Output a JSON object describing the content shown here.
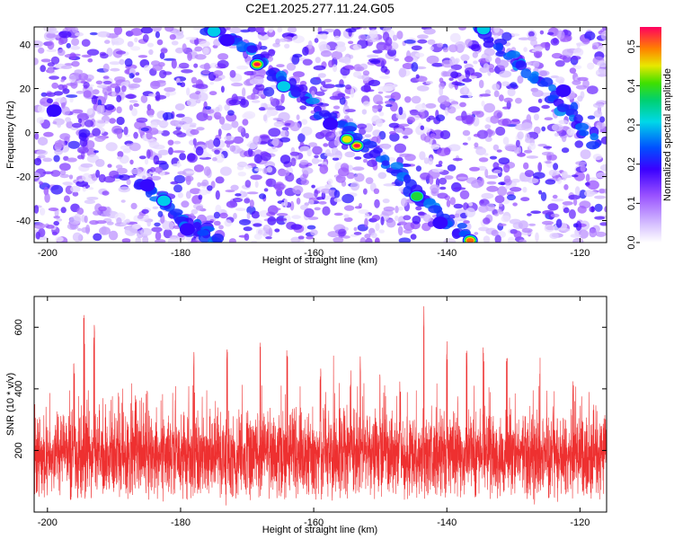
{
  "chart_data": [
    {
      "type": "heatmap",
      "title": "C2E1.2025.277.11.24.G05",
      "xlabel": "Height of straight line (km)",
      "ylabel": "Frequency (Hz)",
      "xlim": [
        -202,
        -116
      ],
      "ylim": [
        -50,
        48
      ],
      "xticks": [
        -200,
        -180,
        -160,
        -140,
        -120
      ],
      "yticks": [
        -40,
        -20,
        0,
        20,
        40
      ],
      "xtick_labels": [
        "-200",
        "-180",
        "-160",
        "-140",
        "-120"
      ],
      "ytick_labels": [
        "-40",
        "-20",
        "0",
        "20",
        "40"
      ],
      "colorbar": {
        "label": "Normalized spectral amplitude",
        "range": [
          0,
          0.55
        ],
        "ticks": [
          0,
          0.1,
          0.2,
          0.3,
          0.4,
          0.5
        ],
        "tick_labels": [
          "0.0",
          "0.1",
          "0.2",
          "0.3",
          "0.4",
          "0.5"
        ]
      },
      "tracks": [
        {
          "name": "track-1",
          "points": [
            [
              -176,
              48
            ],
            [
              -172,
              42
            ],
            [
              -168,
              33
            ],
            [
              -164,
              22
            ],
            [
              -160,
              12
            ],
            [
              -156,
              2
            ],
            [
              -152,
              -6
            ],
            [
              -148,
              -16
            ],
            [
              -145,
              -27
            ],
            [
              -141,
              -38
            ],
            [
              -137,
              -48
            ]
          ]
        },
        {
          "name": "track-2",
          "points": [
            [
              -186,
              -22
            ],
            [
              -183,
              -31
            ],
            [
              -180,
              -38
            ],
            [
              -177,
              -45
            ],
            [
              -175,
              -48
            ]
          ]
        },
        {
          "name": "track-3",
          "points": [
            [
              -135,
              47
            ],
            [
              -131,
              36
            ],
            [
              -127,
              26
            ],
            [
              -123,
              14
            ],
            [
              -120,
              4
            ],
            [
              -117,
              -6
            ]
          ]
        }
      ],
      "hotspots": [
        {
          "x": -168.5,
          "y": 31,
          "amp": 0.55
        },
        {
          "x": -153.5,
          "y": -6,
          "amp": 0.55
        },
        {
          "x": -155.0,
          "y": -3,
          "amp": 0.45
        },
        {
          "x": -144.5,
          "y": -29,
          "amp": 0.42
        },
        {
          "x": -136.5,
          "y": -49,
          "amp": 0.5
        },
        {
          "x": -134.5,
          "y": 47,
          "amp": 0.32
        },
        {
          "x": -175.0,
          "y": 46,
          "amp": 0.3
        },
        {
          "x": -164.5,
          "y": 21,
          "amp": 0.3
        },
        {
          "x": -182.5,
          "y": -31,
          "amp": 0.36
        },
        {
          "x": -199.0,
          "y": 10,
          "amp": 0.25
        },
        {
          "x": -173.0,
          "y": 42,
          "amp": 0.22
        },
        {
          "x": -157.5,
          "y": 4,
          "amp": 0.22
        },
        {
          "x": -185.0,
          "y": -24,
          "amp": 0.2
        },
        {
          "x": -179.0,
          "y": -44,
          "amp": 0.2
        },
        {
          "x": -141.0,
          "y": -41,
          "amp": 0.22
        },
        {
          "x": -122.5,
          "y": 19,
          "amp": 0.2
        },
        {
          "x": -126.0,
          "y": 27,
          "amp": 0.18
        },
        {
          "x": -128.5,
          "y": 35,
          "amp": 0.16
        },
        {
          "x": -196.0,
          "y": -5,
          "amp": 0.14
        },
        {
          "x": -119.5,
          "y": -21,
          "amp": 0.14
        }
      ]
    },
    {
      "type": "line",
      "xlabel": "Height of straight line (km)",
      "ylabel": "SNR (10 * v/v)",
      "xlim": [
        -202,
        -116
      ],
      "ylim": [
        0,
        700
      ],
      "xticks": [
        -200,
        -180,
        -160,
        -140,
        -120
      ],
      "yticks": [
        200,
        400,
        600
      ],
      "xtick_labels": [
        "-200",
        "-180",
        "-160",
        "-140",
        "-120"
      ],
      "ytick_labels": [
        "200",
        "400",
        "600"
      ],
      "color": "#ee3030",
      "series": [
        {
          "name": "snr",
          "description": "dense noisy trace, baseline ~190, most samples between 80 and 320",
          "x_start": -202,
          "x_end": -116,
          "baseline": 190,
          "spread": 120
        },
        {
          "name": "peaks",
          "x": [
            -196,
            -194.5,
            -193,
            -185,
            -178,
            -173,
            -168,
            -164,
            -159,
            -157,
            -154.5,
            -153,
            -150,
            -147,
            -143.5,
            -140,
            -137,
            -134.5,
            -131,
            -126,
            -121,
            -118
          ],
          "values": [
            500,
            640,
            620,
            430,
            520,
            540,
            560,
            540,
            470,
            560,
            460,
            520,
            470,
            430,
            690,
            560,
            540,
            540,
            530,
            520,
            430,
            360
          ]
        }
      ]
    }
  ]
}
